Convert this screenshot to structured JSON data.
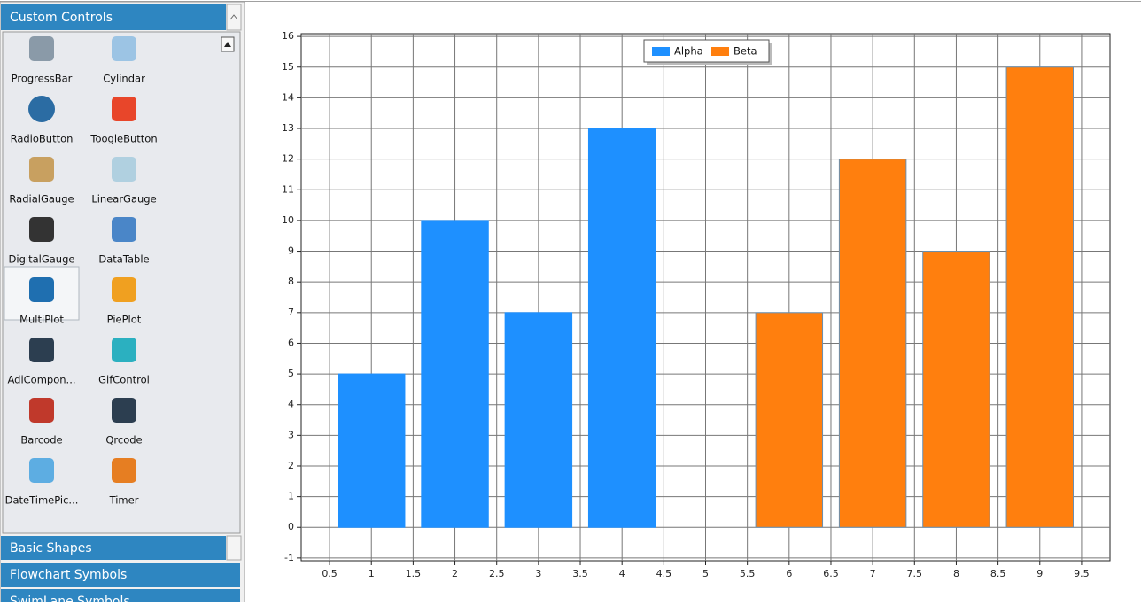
{
  "sidebar": {
    "header": "Custom Controls",
    "items": [
      "ProgressBar",
      "Cylindar",
      "RadioButton",
      "ToogleButton",
      "RadialGauge",
      "LinearGauge",
      "DigitalGauge",
      "DataTable",
      "MultiPlot",
      "PiePlot",
      "AdiCompon...",
      "GifControl",
      "Barcode",
      "Qrcode",
      "DateTimePic...",
      "Timer"
    ],
    "sections": [
      "Basic Shapes",
      "Flowchart Symbols",
      "SwimLane Symbols"
    ]
  },
  "chart_data": {
    "type": "bar",
    "series": [
      {
        "name": "Alpha",
        "color": "#1e90ff",
        "x": [
          1,
          2,
          3,
          4
        ],
        "values": [
          5,
          10,
          7,
          13
        ]
      },
      {
        "name": "Beta",
        "color": "#ff7f0e",
        "x": [
          6,
          7,
          8,
          9
        ],
        "values": [
          7,
          12,
          9,
          15
        ]
      }
    ],
    "xlim": [
      0.16,
      9.84
    ],
    "ylim": [
      -1.09,
      16.09
    ],
    "xticks": [
      0.5,
      1,
      1.5,
      2,
      2.5,
      3,
      3.5,
      4,
      4.5,
      5,
      5.5,
      6,
      6.5,
      7,
      7.5,
      8,
      8.5,
      9,
      9.5
    ],
    "yticks": [
      -1,
      0,
      1,
      2,
      3,
      4,
      5,
      6,
      7,
      8,
      9,
      10,
      11,
      12,
      13,
      14,
      15,
      16
    ],
    "grid": true,
    "legend": "top"
  }
}
